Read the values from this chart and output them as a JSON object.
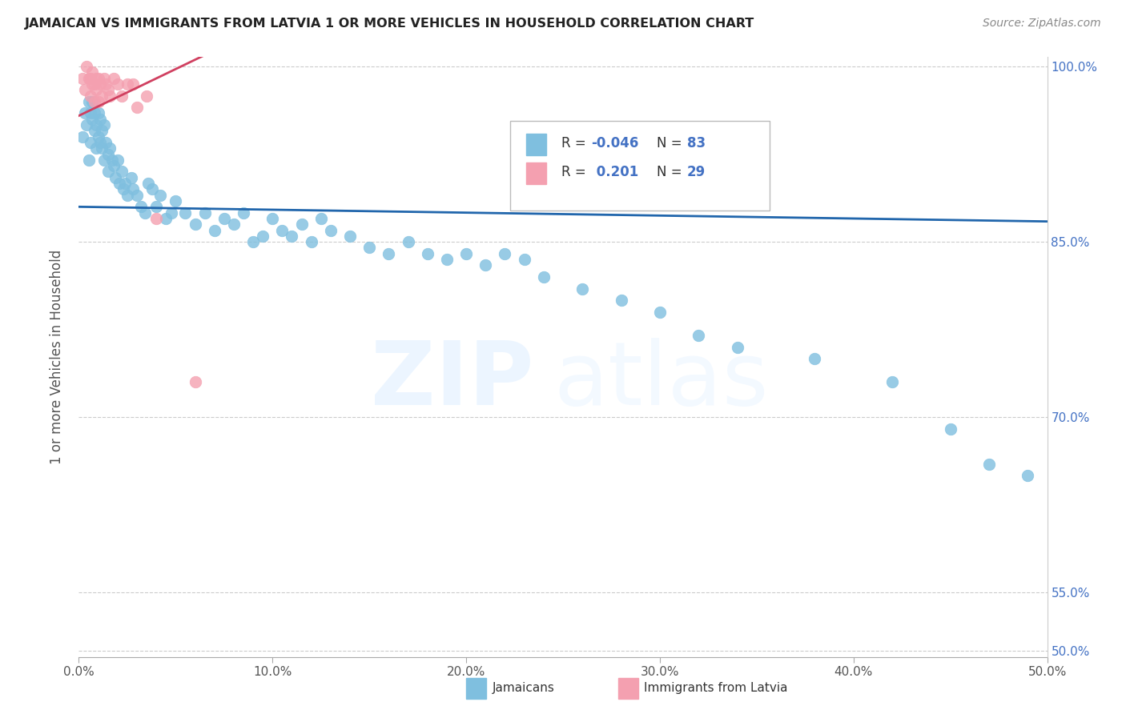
{
  "title": "JAMAICAN VS IMMIGRANTS FROM LATVIA 1 OR MORE VEHICLES IN HOUSEHOLD CORRELATION CHART",
  "source": "Source: ZipAtlas.com",
  "ylabel": "1 or more Vehicles in Household",
  "x_min": 0.0,
  "x_max": 0.5,
  "y_min": 0.495,
  "y_max": 1.008,
  "xtick_labels": [
    "0.0%",
    "10.0%",
    "20.0%",
    "30.0%",
    "40.0%",
    "50.0%"
  ],
  "xtick_vals": [
    0.0,
    0.1,
    0.2,
    0.3,
    0.4,
    0.5
  ],
  "ytick_labels": [
    "50.0%",
    "55.0%",
    "70.0%",
    "85.0%",
    "100.0%"
  ],
  "ytick_vals": [
    0.5,
    0.55,
    0.7,
    0.85,
    1.0
  ],
  "blue_color": "#7fbfdf",
  "pink_color": "#f4a0b0",
  "blue_line_color": "#2166ac",
  "pink_line_color": "#d04060",
  "jamaican_x": [
    0.002,
    0.003,
    0.004,
    0.005,
    0.005,
    0.006,
    0.006,
    0.007,
    0.007,
    0.008,
    0.008,
    0.009,
    0.009,
    0.01,
    0.01,
    0.011,
    0.011,
    0.012,
    0.012,
    0.013,
    0.013,
    0.014,
    0.015,
    0.015,
    0.016,
    0.017,
    0.018,
    0.019,
    0.02,
    0.021,
    0.022,
    0.023,
    0.024,
    0.025,
    0.027,
    0.028,
    0.03,
    0.032,
    0.034,
    0.036,
    0.038,
    0.04,
    0.042,
    0.045,
    0.048,
    0.05,
    0.055,
    0.06,
    0.065,
    0.07,
    0.075,
    0.08,
    0.085,
    0.09,
    0.095,
    0.1,
    0.105,
    0.11,
    0.115,
    0.12,
    0.125,
    0.13,
    0.14,
    0.15,
    0.16,
    0.17,
    0.18,
    0.19,
    0.2,
    0.21,
    0.22,
    0.23,
    0.24,
    0.26,
    0.28,
    0.3,
    0.32,
    0.34,
    0.38,
    0.42,
    0.45,
    0.47,
    0.49
  ],
  "jamaican_y": [
    0.94,
    0.96,
    0.95,
    0.97,
    0.92,
    0.935,
    0.96,
    0.955,
    0.97,
    0.945,
    0.96,
    0.95,
    0.93,
    0.94,
    0.96,
    0.955,
    0.935,
    0.945,
    0.93,
    0.95,
    0.92,
    0.935,
    0.925,
    0.91,
    0.93,
    0.92,
    0.915,
    0.905,
    0.92,
    0.9,
    0.91,
    0.895,
    0.9,
    0.89,
    0.905,
    0.895,
    0.89,
    0.88,
    0.875,
    0.9,
    0.895,
    0.88,
    0.89,
    0.87,
    0.875,
    0.885,
    0.875,
    0.865,
    0.875,
    0.86,
    0.87,
    0.865,
    0.875,
    0.85,
    0.855,
    0.87,
    0.86,
    0.855,
    0.865,
    0.85,
    0.87,
    0.86,
    0.855,
    0.845,
    0.84,
    0.85,
    0.84,
    0.835,
    0.84,
    0.83,
    0.84,
    0.835,
    0.82,
    0.81,
    0.8,
    0.79,
    0.77,
    0.76,
    0.75,
    0.73,
    0.69,
    0.66,
    0.65
  ],
  "latvia_x": [
    0.002,
    0.003,
    0.004,
    0.005,
    0.006,
    0.006,
    0.007,
    0.007,
    0.008,
    0.008,
    0.009,
    0.009,
    0.01,
    0.01,
    0.011,
    0.012,
    0.013,
    0.014,
    0.015,
    0.016,
    0.018,
    0.02,
    0.022,
    0.025,
    0.028,
    0.03,
    0.035,
    0.04,
    0.06
  ],
  "latvia_y": [
    0.99,
    0.98,
    1.0,
    0.99,
    0.99,
    0.975,
    0.985,
    0.995,
    0.97,
    0.985,
    0.99,
    0.98,
    0.99,
    0.97,
    0.985,
    0.975,
    0.99,
    0.985,
    0.98,
    0.975,
    0.99,
    0.985,
    0.975,
    0.985,
    0.985,
    0.965,
    0.975,
    0.87,
    0.73
  ]
}
